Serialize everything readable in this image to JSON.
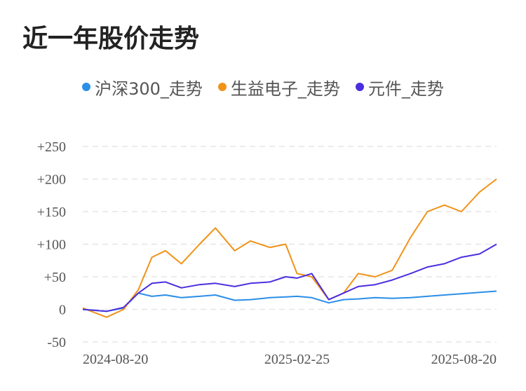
{
  "title": "近一年股价走势",
  "chart_data": {
    "type": "line",
    "title": "近一年股价走势",
    "xlabel": "",
    "ylabel": "",
    "x_tick_labels": [
      "2024-08-20",
      "2025-02-25",
      "2025-08-20"
    ],
    "x": [
      "2024-08-20",
      "2024-09-10",
      "2024-09-25",
      "2024-10-08",
      "2024-10-20",
      "2024-11-01",
      "2024-11-15",
      "2024-12-01",
      "2024-12-15",
      "2025-01-01",
      "2025-01-15",
      "2025-02-01",
      "2025-02-15",
      "2025-02-25",
      "2025-03-10",
      "2025-03-25",
      "2025-04-07",
      "2025-04-20",
      "2025-05-05",
      "2025-05-20",
      "2025-06-05",
      "2025-06-20",
      "2025-07-05",
      "2025-07-20",
      "2025-08-05",
      "2025-08-20"
    ],
    "ylim": [
      -50,
      250
    ],
    "yticks": [
      "+250",
      "+200",
      "+150",
      "+100",
      "+50",
      "0",
      "-50"
    ],
    "ytick_values": [
      250,
      200,
      150,
      100,
      50,
      0,
      -50
    ],
    "grid": true,
    "legend_position": "top-center",
    "series": [
      {
        "name": "沪深300_走势",
        "color": "#2b8ee8",
        "values": [
          0,
          -3,
          2,
          25,
          20,
          22,
          18,
          20,
          22,
          14,
          15,
          18,
          19,
          20,
          18,
          10,
          15,
          16,
          18,
          17,
          18,
          20,
          22,
          24,
          26,
          28
        ]
      },
      {
        "name": "生益电子_走势",
        "color": "#f09318",
        "values": [
          2,
          -12,
          0,
          30,
          80,
          90,
          70,
          100,
          125,
          90,
          105,
          95,
          100,
          55,
          50,
          15,
          25,
          55,
          50,
          60,
          110,
          150,
          160,
          150,
          180,
          200
        ]
      },
      {
        "name": "元件_走势",
        "color": "#4b2ee0",
        "values": [
          0,
          -3,
          3,
          25,
          40,
          42,
          33,
          38,
          40,
          35,
          40,
          42,
          50,
          48,
          55,
          15,
          25,
          35,
          38,
          45,
          55,
          65,
          70,
          80,
          85,
          100
        ]
      }
    ]
  }
}
